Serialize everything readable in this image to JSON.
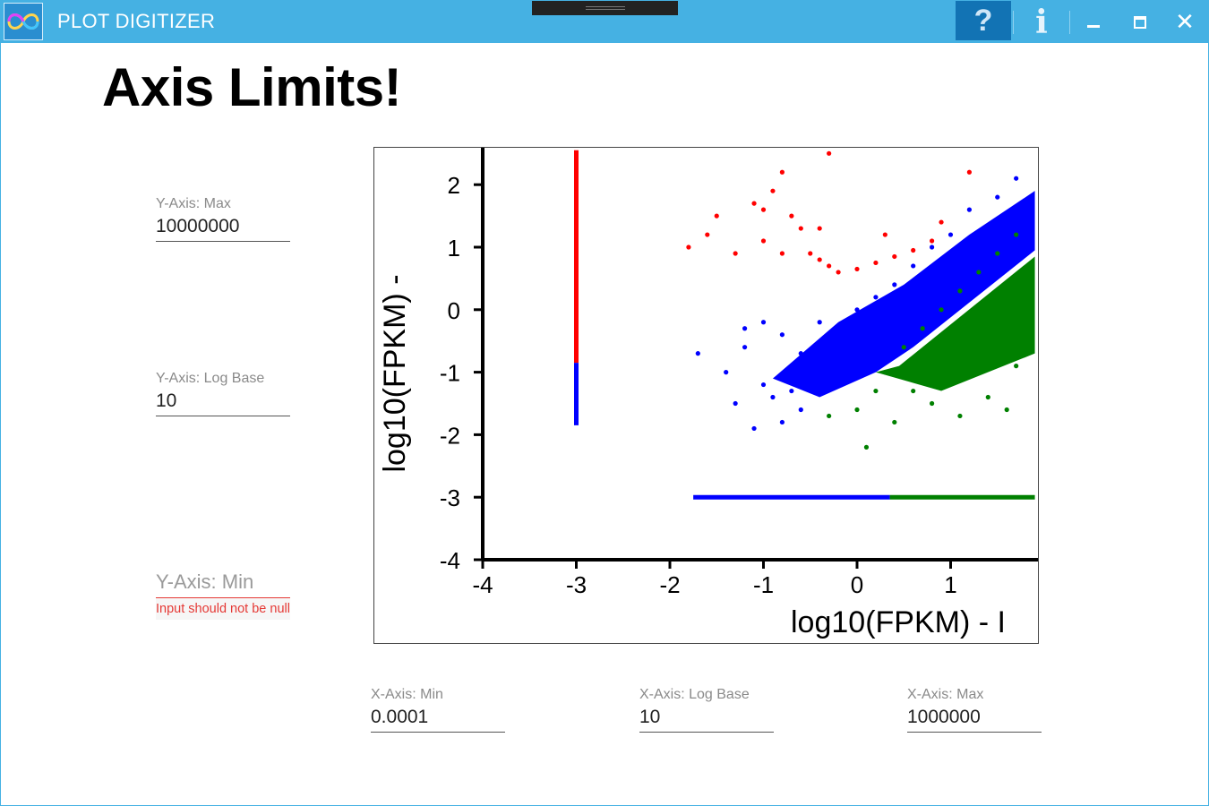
{
  "window": {
    "title": "PLOT DIGITIZER",
    "icons": {
      "app": "infinity-logo-icon",
      "help": "question-mark-icon",
      "info": "info-icon",
      "minimize": "minimize-icon",
      "maximize": "maximize-icon",
      "close": "close-icon"
    },
    "help_label": "?",
    "info_label": "i",
    "close_label": "✕"
  },
  "page": {
    "heading": "Axis Limits!"
  },
  "fields": {
    "y_max": {
      "label": "Y-Axis: Max",
      "value": "10000000"
    },
    "y_log_base": {
      "label": "Y-Axis: Log Base",
      "value": "10"
    },
    "y_min": {
      "placeholder": "Y-Axis: Min",
      "value": "",
      "error": "Input should not be null"
    },
    "x_min": {
      "label": "X-Axis: Min",
      "value": "0.0001"
    },
    "x_log_base": {
      "label": "X-Axis: Log Base",
      "value": "10"
    },
    "x_max": {
      "label": "X-Axis: Max",
      "value": "1000000"
    }
  },
  "colors": {
    "titlebar": "#45b1e3",
    "help_button": "#1273b4",
    "error": "#e53935",
    "series_red": "#ff0000",
    "series_blue": "#0000ff",
    "series_green": "#008000"
  },
  "chart_data": {
    "type": "scatter",
    "ylabel": "log10(FPKM) -",
    "xlabel": "log10(FPKM) - I",
    "x_ticks": [
      "-4",
      "-3",
      "-2",
      "-1",
      "0",
      "1"
    ],
    "y_ticks": [
      "2",
      "1",
      "0",
      "-1",
      "-2",
      "-3",
      "-4"
    ],
    "xlim": [
      -4.1,
      1.9
    ],
    "ylim": [
      -4.1,
      2.55
    ],
    "series": [
      {
        "color": "red",
        "points": [
          [
            -0.9,
            1.9
          ],
          [
            -0.8,
            2.2
          ],
          [
            -1.0,
            1.6
          ],
          [
            -1.1,
            1.7
          ],
          [
            -0.7,
            1.5
          ],
          [
            -0.6,
            1.3
          ],
          [
            -0.5,
            0.9
          ],
          [
            -0.4,
            0.8
          ],
          [
            -0.3,
            0.7
          ],
          [
            -0.2,
            0.6
          ],
          [
            0.0,
            0.65
          ],
          [
            0.2,
            0.75
          ],
          [
            0.4,
            0.85
          ],
          [
            0.6,
            0.95
          ],
          [
            0.8,
            1.1
          ],
          [
            -1.5,
            1.5
          ],
          [
            -1.8,
            1.0
          ],
          [
            -1.6,
            1.2
          ],
          [
            -1.3,
            0.9
          ],
          [
            -1.0,
            1.1
          ],
          [
            -0.8,
            0.9
          ],
          [
            -0.4,
            1.3
          ],
          [
            0.3,
            1.2
          ],
          [
            0.9,
            1.4
          ],
          [
            1.2,
            2.2
          ],
          [
            -0.3,
            2.5
          ]
        ]
      },
      {
        "color": "blue",
        "points": [
          [
            -1.2,
            -0.3
          ],
          [
            -1.0,
            -0.2
          ],
          [
            -0.8,
            -0.4
          ],
          [
            -0.6,
            -0.7
          ],
          [
            -0.5,
            -0.9
          ],
          [
            -0.4,
            -1.1
          ],
          [
            -0.7,
            -1.3
          ],
          [
            -0.9,
            -1.4
          ],
          [
            -1.0,
            -1.2
          ],
          [
            -1.3,
            -1.5
          ],
          [
            -1.1,
            -1.9
          ],
          [
            -0.8,
            -1.8
          ],
          [
            -0.6,
            -1.6
          ],
          [
            -0.3,
            -0.8
          ],
          [
            -0.2,
            -0.3
          ],
          [
            0.0,
            0.0
          ],
          [
            0.2,
            0.2
          ],
          [
            0.4,
            0.4
          ],
          [
            0.6,
            0.7
          ],
          [
            0.8,
            1.0
          ],
          [
            1.0,
            1.2
          ],
          [
            1.2,
            1.6
          ],
          [
            1.5,
            1.8
          ],
          [
            1.7,
            2.1
          ],
          [
            -0.4,
            -0.2
          ],
          [
            -0.2,
            -0.6
          ],
          [
            0.1,
            -0.4
          ],
          [
            0.3,
            0.1
          ],
          [
            -1.7,
            -0.7
          ],
          [
            -1.4,
            -1.0
          ],
          [
            -1.2,
            -0.6
          ]
        ]
      },
      {
        "color": "green",
        "points": [
          [
            0.5,
            -0.6
          ],
          [
            0.7,
            -0.3
          ],
          [
            0.9,
            0.0
          ],
          [
            1.1,
            0.3
          ],
          [
            1.3,
            0.6
          ],
          [
            1.5,
            0.9
          ],
          [
            1.7,
            1.2
          ],
          [
            0.3,
            -1.0
          ],
          [
            0.6,
            -1.3
          ],
          [
            0.9,
            -1.1
          ],
          [
            1.2,
            -0.8
          ],
          [
            1.5,
            -0.5
          ],
          [
            1.7,
            -0.9
          ],
          [
            0.0,
            -1.6
          ],
          [
            0.4,
            -1.8
          ],
          [
            0.8,
            -1.5
          ],
          [
            1.1,
            -1.7
          ],
          [
            1.4,
            -1.4
          ],
          [
            0.2,
            -1.3
          ],
          [
            -0.3,
            -1.7
          ],
          [
            1.6,
            -1.6
          ],
          [
            0.1,
            -2.2
          ]
        ]
      }
    ],
    "horizontal_bands": [
      {
        "y": -3,
        "x_from": -1.75,
        "x_to": 0.35,
        "color": "blue"
      },
      {
        "y": -3,
        "x_from": 0.35,
        "x_to": 1.9,
        "color": "green"
      }
    ],
    "vertical_bands": [
      {
        "x": -3,
        "y_from": -0.85,
        "y_to": 2.55,
        "color": "red"
      },
      {
        "x": -3,
        "y_from": -1.85,
        "y_to": -0.85,
        "color": "blue"
      }
    ]
  }
}
